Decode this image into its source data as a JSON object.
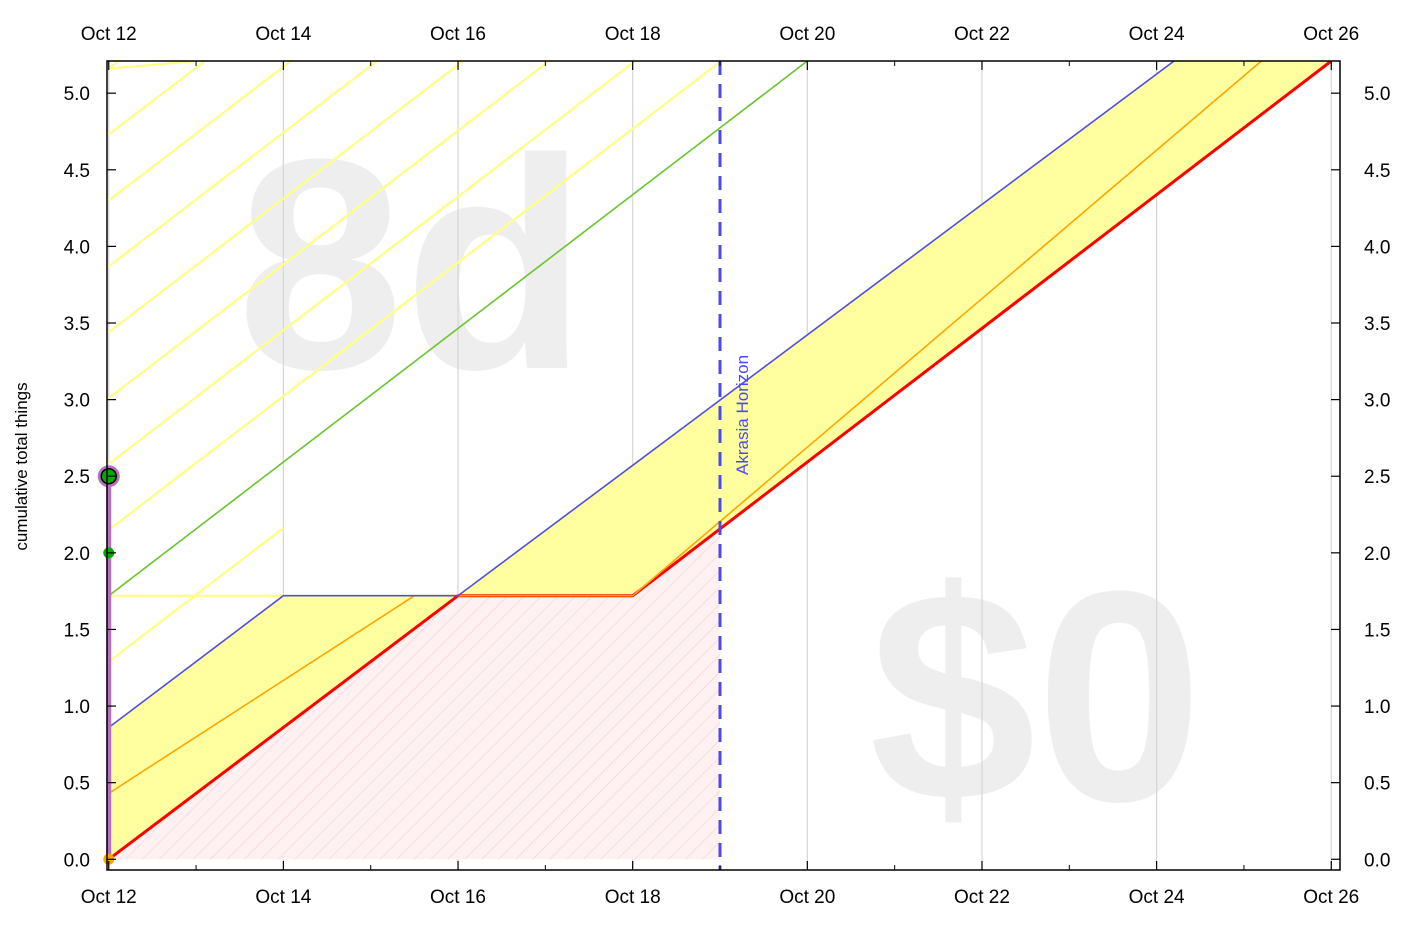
{
  "chart_data": {
    "type": "line",
    "title": "",
    "ylabel": "cumulative total things",
    "xlabel": "",
    "x_tick_labels": [
      "Oct 12",
      "Oct 14",
      "Oct 16",
      "Oct 18",
      "Oct 20",
      "Oct 22",
      "Oct 24",
      "Oct 26"
    ],
    "x_tick_dates": [
      "2023-10-12",
      "2023-10-14",
      "2023-10-16",
      "2023-10-18",
      "2023-10-20",
      "2023-10-22",
      "2023-10-24",
      "2023-10-26"
    ],
    "y_tick_labels": [
      "0.0",
      "0.5",
      "1.0",
      "1.5",
      "2.0",
      "2.5",
      "3.0",
      "3.5",
      "4.0",
      "4.5",
      "5.0"
    ],
    "xlim": [
      "2023-10-11.98",
      "2023-10-26.1"
    ],
    "ylim": [
      -0.07,
      5.21
    ],
    "grid": true,
    "watermarks": {
      "days_left": "8d",
      "pledge": "$0"
    },
    "akrasia_horizon": {
      "label": "Akrasia Horizon",
      "date": "2023-10-19",
      "color": "#4a4af0"
    },
    "series": [
      {
        "name": "red line",
        "color": "#ff0000",
        "points": [
          [
            "2023-10-12",
            0.0
          ],
          [
            "2023-10-16",
            1.72
          ],
          [
            "2023-10-18",
            1.72
          ],
          [
            "2023-10-26",
            5.21
          ]
        ]
      },
      {
        "name": "orange line",
        "color": "#ffa500",
        "points": [
          [
            "2023-10-12",
            0.43
          ],
          [
            "2023-10-15.5",
            1.72
          ],
          [
            "2023-10-18",
            1.72
          ],
          [
            "2023-10-25.2",
            5.21
          ]
        ]
      },
      {
        "name": "blue line",
        "color": "#5050d0",
        "points": [
          [
            "2023-10-12",
            0.86
          ],
          [
            "2023-10-14",
            1.72
          ],
          [
            "2023-10-16",
            1.72
          ],
          [
            "2023-10-24.2",
            5.21
          ]
        ]
      },
      {
        "name": "green line",
        "color": "#6ac42c",
        "points": [
          [
            "2023-10-12",
            1.72
          ],
          [
            "2023-10-20",
            5.21
          ]
        ]
      }
    ],
    "yellow_band": {
      "color": "#ffffa0",
      "lower": [
        [
          "2023-10-12",
          0.0
        ],
        [
          "2023-10-16",
          1.72
        ],
        [
          "2023-10-18",
          1.72
        ],
        [
          "2023-10-26",
          5.21
        ]
      ],
      "upper": [
        [
          "2023-10-12",
          0.86
        ],
        [
          "2023-10-14",
          1.72
        ],
        [
          "2023-10-16",
          1.72
        ],
        [
          "2023-10-24.2",
          5.21
        ]
      ]
    },
    "datapoints": [
      {
        "date": "2023-10-12",
        "value": 0.0,
        "color": "#ffa500"
      },
      {
        "date": "2023-10-12",
        "value": 2.0,
        "color": "#00aa00"
      },
      {
        "date": "2023-10-12",
        "value": 2.5,
        "color": "#00aa00",
        "highlight": true
      }
    ],
    "data_line": {
      "color": "#b86fc0",
      "points": [
        [
          "2023-10-12",
          0.0
        ],
        [
          "2023-10-12",
          2.5
        ]
      ]
    }
  }
}
